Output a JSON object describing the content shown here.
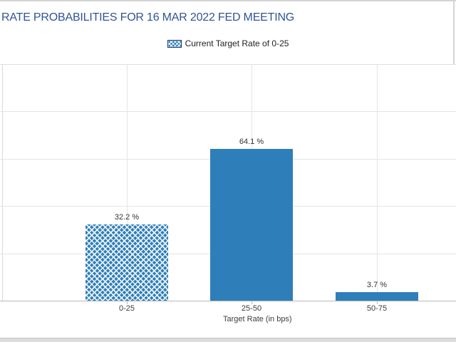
{
  "title": "RATE PROBABILITIES FOR 16 MAR 2022 FED MEETING",
  "legend": {
    "label": "Current Target Rate of 0-25"
  },
  "chart_data": {
    "type": "bar",
    "title": "RATE PROBABILITIES FOR 16 MAR 2022 FED MEETING",
    "xlabel": "Target Rate (in bps)",
    "ylabel": "",
    "ylim": [
      0,
      100
    ],
    "grid_step": 20,
    "grid": true,
    "legend_position": "top-center",
    "categories": [
      "0-25",
      "25-50",
      "50-75"
    ],
    "values": [
      32.2,
      64.1,
      3.7
    ],
    "value_labels": [
      "32.2 %",
      "64.1 %",
      "3.7 %"
    ],
    "patterned": [
      true,
      false,
      false
    ],
    "legend_entries": [
      "Current Target Rate of 0-25"
    ]
  },
  "colors": {
    "bar_fill": "#2e7fb9",
    "title_text": "#2f5496",
    "pattern_line": "#ffffff",
    "legend_swatch_border": "#1a3b6e",
    "gridline": "#e4e4e4",
    "axis_line": "#b8b8b8"
  }
}
